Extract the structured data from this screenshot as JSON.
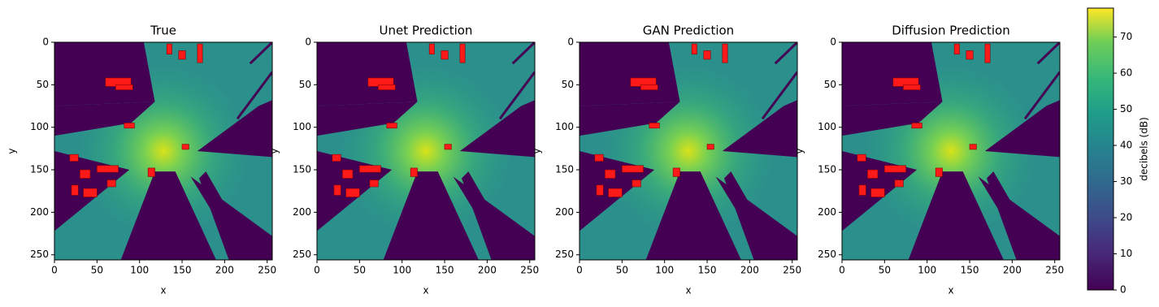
{
  "chart_data": [
    {
      "type": "heatmap",
      "title": "True",
      "xlabel": "x",
      "ylabel": "y",
      "xlim": [
        0,
        256
      ],
      "ylim": [
        256,
        0
      ],
      "xticks": [
        0,
        50,
        100,
        150,
        200,
        250
      ],
      "yticks": [
        0,
        50,
        100,
        150,
        200,
        250
      ]
    },
    {
      "type": "heatmap",
      "title": "Unet Prediction",
      "xlabel": "x",
      "ylabel": "y",
      "xlim": [
        0,
        256
      ],
      "ylim": [
        256,
        0
      ],
      "xticks": [
        0,
        50,
        100,
        150,
        200,
        250
      ],
      "yticks": [
        0,
        50,
        100,
        150,
        200,
        250
      ]
    },
    {
      "type": "heatmap",
      "title": "GAN Prediction",
      "xlabel": "x",
      "ylabel": "y",
      "xlim": [
        0,
        256
      ],
      "ylim": [
        256,
        0
      ],
      "xticks": [
        0,
        50,
        100,
        150,
        200,
        250
      ],
      "yticks": [
        0,
        50,
        100,
        150,
        200,
        250
      ]
    },
    {
      "type": "heatmap",
      "title": "Diffusion Prediction",
      "xlabel": "x",
      "ylabel": "y",
      "xlim": [
        0,
        256
      ],
      "ylim": [
        256,
        0
      ],
      "xticks": [
        0,
        50,
        100,
        150,
        200,
        250
      ],
      "yticks": [
        0,
        50,
        100,
        150,
        200,
        250
      ]
    }
  ],
  "colorbar": {
    "label": "decibels (dB)",
    "colormap": "viridis",
    "lim": [
      0,
      78
    ],
    "ticks": [
      0,
      10,
      20,
      30,
      40,
      50,
      60,
      70
    ]
  }
}
